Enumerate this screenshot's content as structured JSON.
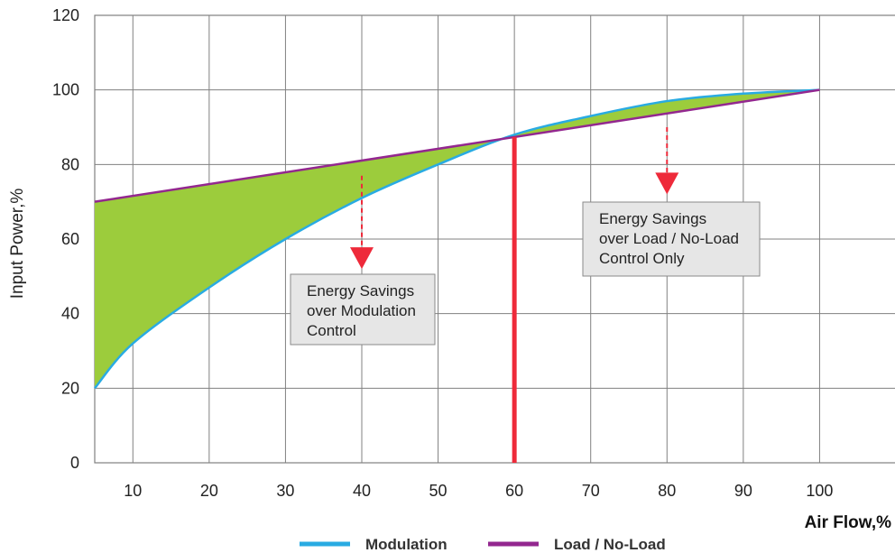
{
  "chart_data": {
    "type": "area",
    "xlabel": "Air Flow,%",
    "ylabel": "Input Power,%",
    "xlim": [
      5,
      110
    ],
    "ylim": [
      0,
      120
    ],
    "x_ticks": [
      10,
      20,
      30,
      40,
      50,
      60,
      70,
      80,
      90,
      100
    ],
    "y_ticks": [
      0,
      20,
      40,
      60,
      80,
      100,
      120
    ],
    "grid": true,
    "legend_position": "bottom",
    "series": [
      {
        "name": "Modulation",
        "color": "#29abe2",
        "x": [
          5,
          10,
          20,
          30,
          40,
          50,
          60,
          70,
          80,
          90,
          100
        ],
        "y": [
          20,
          32,
          47,
          60,
          71,
          80,
          88,
          93,
          97,
          99,
          100
        ]
      },
      {
        "name": "Load / No-Load",
        "color": "#93278f",
        "x": [
          5,
          100
        ],
        "y": [
          70,
          100
        ]
      }
    ],
    "fill_color": "#9ccc3c",
    "marker_line": {
      "x": 60,
      "color": "#ee2a3a"
    },
    "annotations": [
      {
        "id": "modulation",
        "lines": [
          "Energy Savings",
          "over Modulation",
          "Control"
        ],
        "arrow_x": 40,
        "arrow_from_y": 77,
        "arrow_to_y": 52
      },
      {
        "id": "load",
        "lines": [
          "Energy Savings",
          "over Load / No-Load",
          "Control Only"
        ],
        "arrow_x": 80,
        "arrow_from_y": 90,
        "arrow_to_y": 72
      }
    ]
  }
}
